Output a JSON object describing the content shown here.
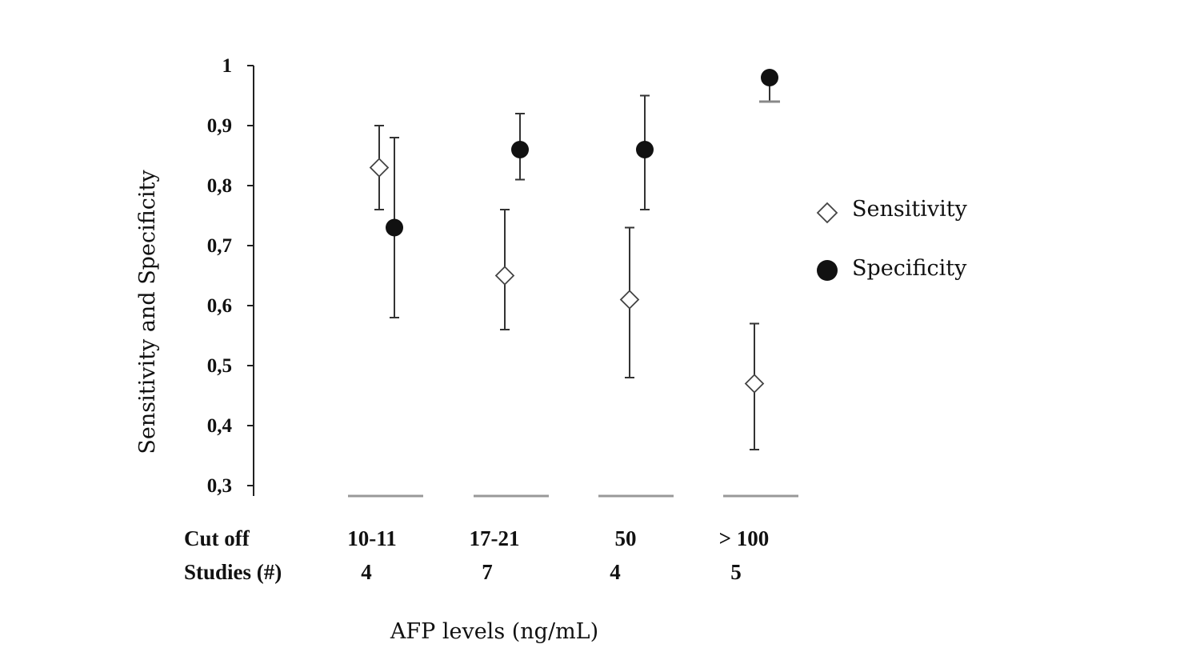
{
  "chart_data": {
    "type": "scatter",
    "title": "",
    "xlabel": "AFP levels (ng/mL)",
    "ylabel": "Sensitivity and Specificity",
    "ylim": [
      0.3,
      1
    ],
    "yticks": [
      "0,3",
      "0,4",
      "0,5",
      "0,6",
      "0,7",
      "0,8",
      "0,9",
      "1"
    ],
    "yticks_values": [
      0.3,
      0.4,
      0.5,
      0.6,
      0.7,
      0.8,
      0.9,
      1.0
    ],
    "grid": false,
    "legend_position": "right",
    "categories": [
      "10-11",
      "17-21",
      "50",
      "> 100"
    ],
    "table": {
      "rows": [
        {
          "label": "Cut off",
          "values": [
            "10-11",
            "17-21",
            "50",
            "> 100"
          ]
        },
        {
          "label": "Studies (#)",
          "values": [
            "4",
            "7",
            "4",
            "5"
          ]
        }
      ]
    },
    "series": [
      {
        "name": "Sensitivity",
        "marker": "open-diamond",
        "color": "#ffffff",
        "values": [
          0.83,
          0.65,
          0.61,
          0.47
        ],
        "ci_lower": [
          0.76,
          0.56,
          0.48,
          0.36
        ],
        "ci_upper": [
          0.9,
          0.76,
          0.73,
          0.57
        ]
      },
      {
        "name": "Specificity",
        "marker": "filled-circle",
        "color": "#111111",
        "values": [
          0.73,
          0.86,
          0.86,
          0.98
        ],
        "ci_lower": [
          0.58,
          0.81,
          0.76,
          0.94
        ],
        "ci_upper": [
          0.88,
          0.92,
          0.95,
          null
        ]
      }
    ]
  }
}
